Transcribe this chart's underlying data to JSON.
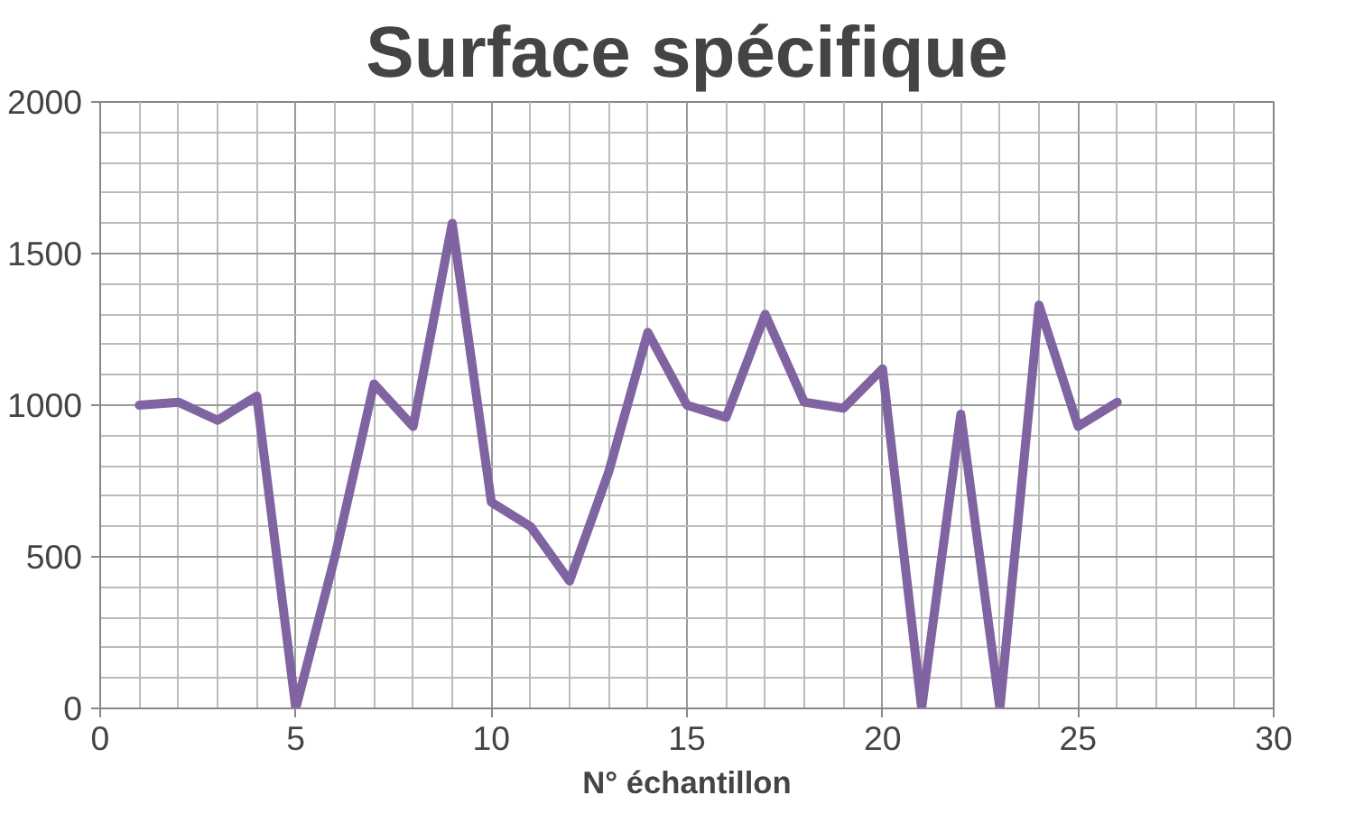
{
  "chart_data": {
    "type": "line",
    "title": "Surface spécifique",
    "xlabel": "N° échantillon",
    "x": [
      1,
      2,
      3,
      4,
      5,
      6,
      7,
      8,
      9,
      10,
      11,
      12,
      13,
      14,
      15,
      16,
      17,
      18,
      19,
      20,
      21,
      22,
      23,
      24,
      25,
      26
    ],
    "series": [
      {
        "color": "#8064a2",
        "values": [
          1000,
          1010,
          950,
          1030,
          0,
          500,
          1070,
          930,
          1600,
          680,
          600,
          420,
          780,
          1240,
          1000,
          960,
          1300,
          1010,
          990,
          1120,
          0,
          970,
          0,
          1330,
          930,
          1010
        ]
      }
    ],
    "xlim": [
      0,
      30
    ],
    "xticks": [
      0,
      5,
      10,
      15,
      20,
      25,
      30
    ],
    "ylim": [
      0,
      2000
    ],
    "yticks": [
      0,
      500,
      1000,
      1500,
      2000
    ],
    "grid": true,
    "marker": "none",
    "line_style": "solid"
  }
}
